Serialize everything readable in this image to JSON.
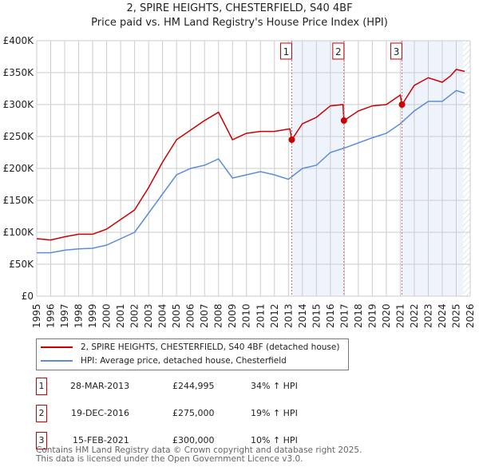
{
  "chart_data": {
    "type": "line",
    "title": "2, SPIRE HEIGHTS, CHESTERFIELD, S40 4BF",
    "subtitle": "Price paid vs. HM Land Registry's House Price Index (HPI)",
    "xlim": [
      1995,
      2026
    ],
    "ylim": [
      0,
      400000
    ],
    "x_ticks": [
      "1995",
      "1996",
      "1997",
      "1998",
      "1999",
      "2000",
      "2001",
      "2002",
      "2003",
      "2004",
      "2005",
      "2006",
      "2007",
      "2008",
      "2009",
      "2010",
      "2011",
      "2012",
      "2013",
      "2014",
      "2015",
      "2016",
      "2017",
      "2018",
      "2019",
      "2020",
      "2021",
      "2022",
      "2023",
      "2024",
      "2025",
      "2026"
    ],
    "y_ticks": [
      {
        "v": 0,
        "label": "£0"
      },
      {
        "v": 50000,
        "label": "£50K"
      },
      {
        "v": 100000,
        "label": "£100K"
      },
      {
        "v": 150000,
        "label": "£150K"
      },
      {
        "v": 200000,
        "label": "£200K"
      },
      {
        "v": 250000,
        "label": "£250K"
      },
      {
        "v": 300000,
        "label": "£300K"
      },
      {
        "v": 350000,
        "label": "£350K"
      },
      {
        "v": 400000,
        "label": "£400K"
      }
    ],
    "series": [
      {
        "name": "2, SPIRE HEIGHTS, CHESTERFIELD, S40 4BF (detached house)",
        "color": "#cc0000",
        "x": [
          1995,
          1996,
          1997,
          1998,
          1999,
          2000,
          2001,
          2002,
          2003,
          2004,
          2005,
          2006,
          2007,
          2008,
          2009,
          2010,
          2011,
          2012,
          2013.1,
          2013.24,
          2014,
          2015,
          2016,
          2016.9,
          2016.97,
          2018,
          2019,
          2020,
          2021.0,
          2021.12,
          2022,
          2023,
          2024,
          2024.6,
          2025,
          2025.6
        ],
        "y": [
          90000,
          88000,
          93000,
          97000,
          97000,
          105000,
          120000,
          135000,
          170000,
          210000,
          245000,
          260000,
          275000,
          288000,
          245000,
          255000,
          258000,
          258000,
          262000,
          245000,
          270000,
          280000,
          298000,
          300000,
          275000,
          290000,
          298000,
          300000,
          315000,
          300000,
          330000,
          342000,
          335000,
          345000,
          355000,
          352000
        ]
      },
      {
        "name": "HPI: Average price, detached house, Chesterfield",
        "color": "#5b8dd6",
        "x": [
          1995,
          1996,
          1997,
          1998,
          1999,
          2000,
          2001,
          2002,
          2003,
          2004,
          2005,
          2006,
          2007,
          2008,
          2009,
          2010,
          2011,
          2012,
          2013,
          2014,
          2015,
          2016,
          2017,
          2018,
          2019,
          2020,
          2021,
          2022,
          2023,
          2024,
          2025,
          2025.6
        ],
        "y": [
          68000,
          68000,
          72000,
          74000,
          75000,
          80000,
          90000,
          100000,
          130000,
          160000,
          190000,
          200000,
          205000,
          215000,
          185000,
          190000,
          195000,
          190000,
          183000,
          200000,
          205000,
          225000,
          232000,
          240000,
          248000,
          255000,
          270000,
          290000,
          305000,
          305000,
          322000,
          318000
        ]
      }
    ],
    "sales": [
      {
        "n": "1",
        "date": "28-MAR-2013",
        "x": 2013.24,
        "price": "£244,995",
        "price_v": 244995,
        "hpi": "34% ↑ HPI"
      },
      {
        "n": "2",
        "date": "19-DEC-2016",
        "x": 2016.97,
        "price": "£275,000",
        "price_v": 275000,
        "hpi": "19% ↑ HPI"
      },
      {
        "n": "3",
        "date": "15-FEB-2021",
        "x": 2021.12,
        "price": "£300,000",
        "price_v": 300000,
        "hpi": "10% ↑ HPI"
      }
    ],
    "shaded": [
      [
        2013.24,
        2016.97
      ],
      [
        2021.12,
        2025.5
      ]
    ],
    "hatched_from": 2025.5
  },
  "footer": {
    "line1": "Contains HM Land Registry data © Crown copyright and database right 2025.",
    "line2": "This data is licensed under the Open Government Licence v3.0."
  }
}
